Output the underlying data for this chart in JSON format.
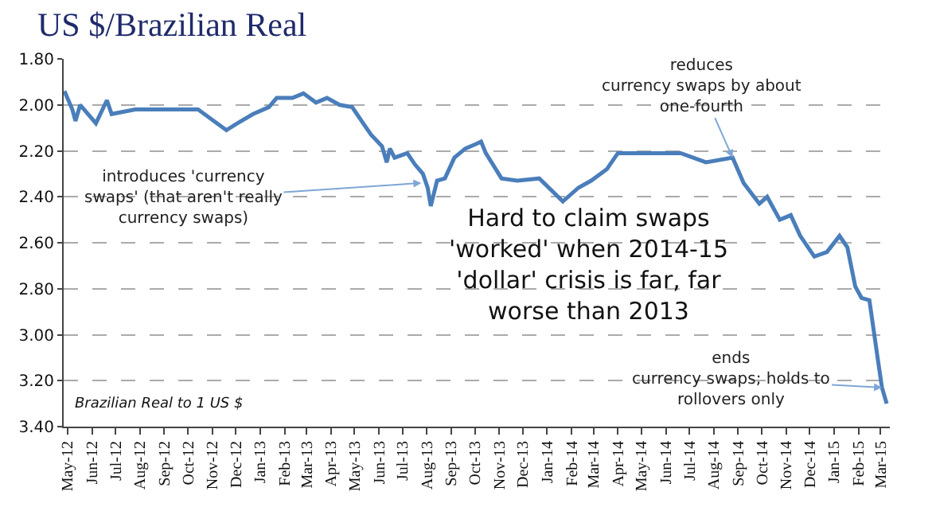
{
  "chart_data": {
    "type": "line",
    "title": "US $/Brazilian Real",
    "x": [
      "2012-04-27",
      "2012-05-07",
      "2012-05-11",
      "2012-05-17",
      "2012-05-27",
      "2012-06-06",
      "2012-06-20",
      "2012-06-26",
      "2012-07-26",
      "2012-09-04",
      "2012-10-14",
      "2012-11-03",
      "2012-11-19",
      "2012-12-03",
      "2012-12-23",
      "2013-01-12",
      "2013-01-22",
      "2013-02-11",
      "2013-02-25",
      "2013-03-13",
      "2013-03-27",
      "2013-04-12",
      "2013-04-28",
      "2013-05-12",
      "2013-05-22",
      "2013-06-05",
      "2013-06-11",
      "2013-06-15",
      "2013-06-21",
      "2013-07-07",
      "2013-07-17",
      "2013-07-27",
      "2013-08-02",
      "2013-08-06",
      "2013-08-14",
      "2013-08-24",
      "2013-09-05",
      "2013-09-19",
      "2013-10-03",
      "2013-10-09",
      "2013-10-15",
      "2013-11-04",
      "2013-11-24",
      "2013-12-22",
      "2014-01-21",
      "2014-02-10",
      "2014-02-26",
      "2014-03-18",
      "2014-04-01",
      "2014-05-11",
      "2014-06-20",
      "2014-07-22",
      "2014-08-25",
      "2014-09-08",
      "2014-09-28",
      "2014-10-08",
      "2014-10-24",
      "2014-11-07",
      "2014-11-19",
      "2014-12-07",
      "2014-12-23",
      "2015-01-08",
      "2015-01-18",
      "2015-01-28",
      "2015-02-05",
      "2015-02-15",
      "2015-02-25",
      "2015-03-03",
      "2015-03-09"
    ],
    "series": [
      {
        "color": "#4a7ebb",
        "values": [
          1.94,
          2.02,
          2.07,
          2.0,
          2.04,
          2.08,
          1.98,
          2.04,
          2.02,
          2.02,
          2.02,
          2.07,
          2.11,
          2.08,
          2.04,
          2.01,
          1.97,
          1.97,
          1.95,
          1.99,
          1.97,
          2.0,
          2.01,
          2.08,
          2.13,
          2.18,
          2.25,
          2.19,
          2.23,
          2.21,
          2.26,
          2.3,
          2.36,
          2.44,
          2.33,
          2.32,
          2.23,
          2.19,
          2.17,
          2.16,
          2.21,
          2.32,
          2.33,
          2.32,
          2.42,
          2.36,
          2.33,
          2.28,
          2.21,
          2.21,
          2.21,
          2.25,
          2.23,
          2.34,
          2.43,
          2.4,
          2.5,
          2.48,
          2.57,
          2.66,
          2.64,
          2.57,
          2.62,
          2.79,
          2.84,
          2.85,
          3.09,
          3.23,
          3.3
        ]
      }
    ],
    "xlim": [
      "2012-04-26",
      "2015-03-13"
    ],
    "xticks": [
      {
        "value": "2012-05-01",
        "label": "May-12"
      },
      {
        "value": "2012-06-01",
        "label": "Jun-12"
      },
      {
        "value": "2012-07-01",
        "label": "Jul-12"
      },
      {
        "value": "2012-08-01",
        "label": "Aug-12"
      },
      {
        "value": "2012-09-01",
        "label": "Sep-12"
      },
      {
        "value": "2012-10-01",
        "label": "Oct-12"
      },
      {
        "value": "2012-11-01",
        "label": "Nov-12"
      },
      {
        "value": "2012-12-01",
        "label": "Dec-12"
      },
      {
        "value": "2013-01-01",
        "label": "Jan-13"
      },
      {
        "value": "2013-02-01",
        "label": "Feb-13"
      },
      {
        "value": "2013-03-01",
        "label": "Mar-13"
      },
      {
        "value": "2013-04-01",
        "label": "Apr-13"
      },
      {
        "value": "2013-05-01",
        "label": "May-13"
      },
      {
        "value": "2013-06-01",
        "label": "Jun-13"
      },
      {
        "value": "2013-07-01",
        "label": "Jul-13"
      },
      {
        "value": "2013-08-01",
        "label": "Aug-13"
      },
      {
        "value": "2013-09-01",
        "label": "Sep-13"
      },
      {
        "value": "2013-10-01",
        "label": "Oct-13"
      },
      {
        "value": "2013-11-01",
        "label": "Nov-13"
      },
      {
        "value": "2013-12-01",
        "label": "Dec-13"
      },
      {
        "value": "2014-01-01",
        "label": "Jan-14"
      },
      {
        "value": "2014-02-01",
        "label": "Feb-14"
      },
      {
        "value": "2014-03-01",
        "label": "Mar-14"
      },
      {
        "value": "2014-04-01",
        "label": "Apr-14"
      },
      {
        "value": "2014-05-01",
        "label": "May-14"
      },
      {
        "value": "2014-06-01",
        "label": "Jun-14"
      },
      {
        "value": "2014-07-01",
        "label": "Jul-14"
      },
      {
        "value": "2014-08-01",
        "label": "Aug-14"
      },
      {
        "value": "2014-09-01",
        "label": "Sep-14"
      },
      {
        "value": "2014-10-01",
        "label": "Oct-14"
      },
      {
        "value": "2014-11-01",
        "label": "Nov-14"
      },
      {
        "value": "2014-12-01",
        "label": "Dec-14"
      },
      {
        "value": "2015-01-01",
        "label": "Jan-15"
      },
      {
        "value": "2015-02-01",
        "label": "Feb-15"
      },
      {
        "value": "2015-03-01",
        "label": "Mar-15"
      }
    ],
    "ylim": [
      3.4,
      1.8
    ],
    "yticks": [
      {
        "value": 1.8,
        "label": "1.80"
      },
      {
        "value": 2.0,
        "label": "2.00"
      },
      {
        "value": 2.2,
        "label": "2.20"
      },
      {
        "value": 2.4,
        "label": "2.40"
      },
      {
        "value": 2.6,
        "label": "2.60"
      },
      {
        "value": 2.8,
        "label": "2.80"
      },
      {
        "value": 3.0,
        "label": "3.00"
      },
      {
        "value": 3.2,
        "label": "3.20"
      },
      {
        "value": 3.4,
        "label": "3.40"
      }
    ],
    "grid": "y",
    "marker": "none",
    "line_style": "solid",
    "annotations": [
      {
        "text": "introduces 'currency\nswaps' (that aren't really\ncurrency swaps)",
        "x": "2013-07-25",
        "y": 2.34
      },
      {
        "text": "reduces\ncurrency swaps by about\none-fourth",
        "x": "2014-08-25",
        "y": 2.23
      },
      "Hard to claim swaps\n'worked' when 2014-15\n'dollar' crisis is far, far\nworse than 2013",
      {
        "text": "ends\ncurrency swaps; holds to\nrollovers only",
        "x": "2015-03-03",
        "y": 3.23
      },
      "Brazilian Real to 1 US $"
    ]
  }
}
